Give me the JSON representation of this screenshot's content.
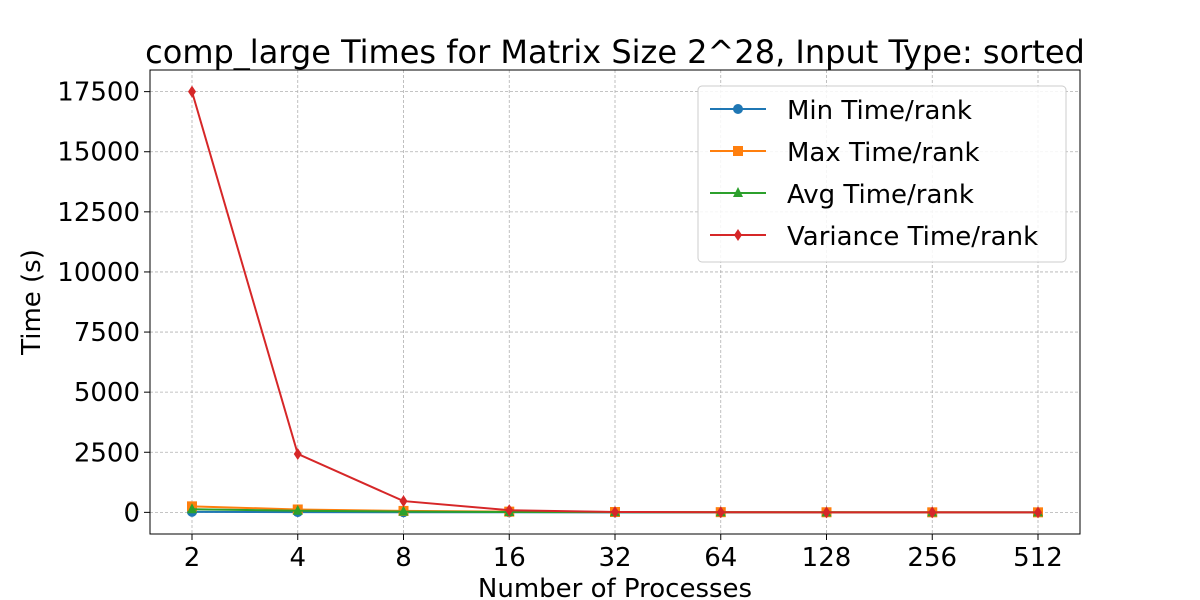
{
  "chart_data": {
    "type": "line",
    "title": "comp_large Times for Matrix Size 2^28, Input Type: sorted",
    "xlabel": "Number of Processes",
    "ylabel": "Time (s)",
    "x": [
      2,
      4,
      8,
      16,
      32,
      64,
      128,
      256,
      512
    ],
    "x_tick_labels": [
      "2",
      "4",
      "8",
      "16",
      "32",
      "64",
      "128",
      "256",
      "512"
    ],
    "x_scale": "log2",
    "y_ticks": [
      0,
      2500,
      5000,
      7500,
      10000,
      12500,
      15000,
      17500
    ],
    "y_tick_labels": [
      "0",
      "2500",
      "5000",
      "7500",
      "10000",
      "12500",
      "15000",
      "17500"
    ],
    "ylim": [
      -900,
      18400
    ],
    "grid": true,
    "legend_position": "top-right",
    "series": [
      {
        "name": "Min Time/rank",
        "color": "#1f77b4",
        "marker": "circle",
        "values": [
          20,
          10,
          5,
          3,
          1.5,
          0.8,
          0.4,
          0.2,
          0.1
        ]
      },
      {
        "name": "Max Time/rank",
        "color": "#ff7f0e",
        "marker": "square",
        "values": [
          250,
          120,
          60,
          30,
          15,
          8,
          4,
          2,
          1
        ]
      },
      {
        "name": "Avg Time/rank",
        "color": "#2ca02c",
        "marker": "triangle",
        "values": [
          130,
          65,
          33,
          17,
          8,
          4,
          2,
          1,
          0.5
        ]
      },
      {
        "name": "Variance Time/rank",
        "color": "#d62728",
        "marker": "diamond",
        "values": [
          17500,
          2430,
          470,
          90,
          15,
          3,
          1,
          0.5,
          0.2
        ]
      }
    ]
  }
}
